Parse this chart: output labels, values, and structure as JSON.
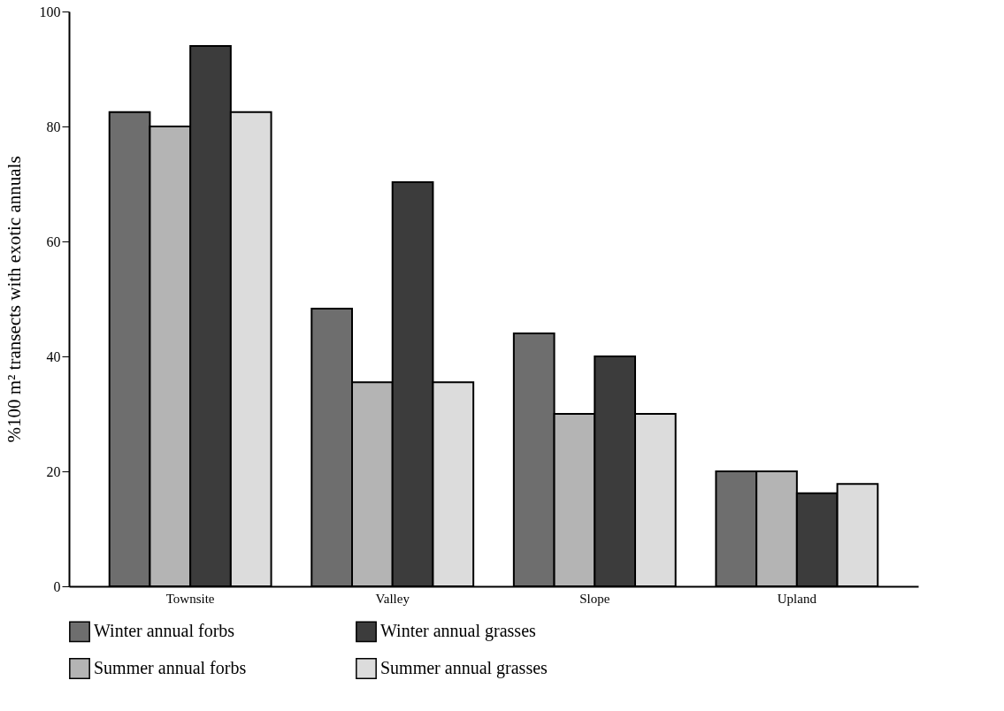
{
  "chart_data": {
    "type": "bar",
    "ylabel": "%100 m² transects with exotic annuals",
    "categories": [
      "Townsite",
      "Valley",
      "Slope",
      "Upland"
    ],
    "series": [
      {
        "name": "Winter annual forbs",
        "color": "#6e6e6e",
        "values": [
          82.5,
          48.3,
          44,
          20
        ]
      },
      {
        "name": "Summer annual forbs",
        "color": "#b4b4b4",
        "values": [
          80,
          35.5,
          30,
          20
        ]
      },
      {
        "name": "Winter annual grasses",
        "color": "#3c3c3c",
        "values": [
          94,
          70.3,
          40,
          16.2
        ]
      },
      {
        "name": "Summer annual grasses",
        "color": "#dcdcdc",
        "values": [
          82.5,
          35.5,
          30,
          17.8
        ]
      }
    ],
    "ylim": [
      0,
      100
    ],
    "yticks": [
      0,
      20,
      40,
      60,
      80,
      100
    ],
    "grid": false,
    "legend": "bottom"
  }
}
